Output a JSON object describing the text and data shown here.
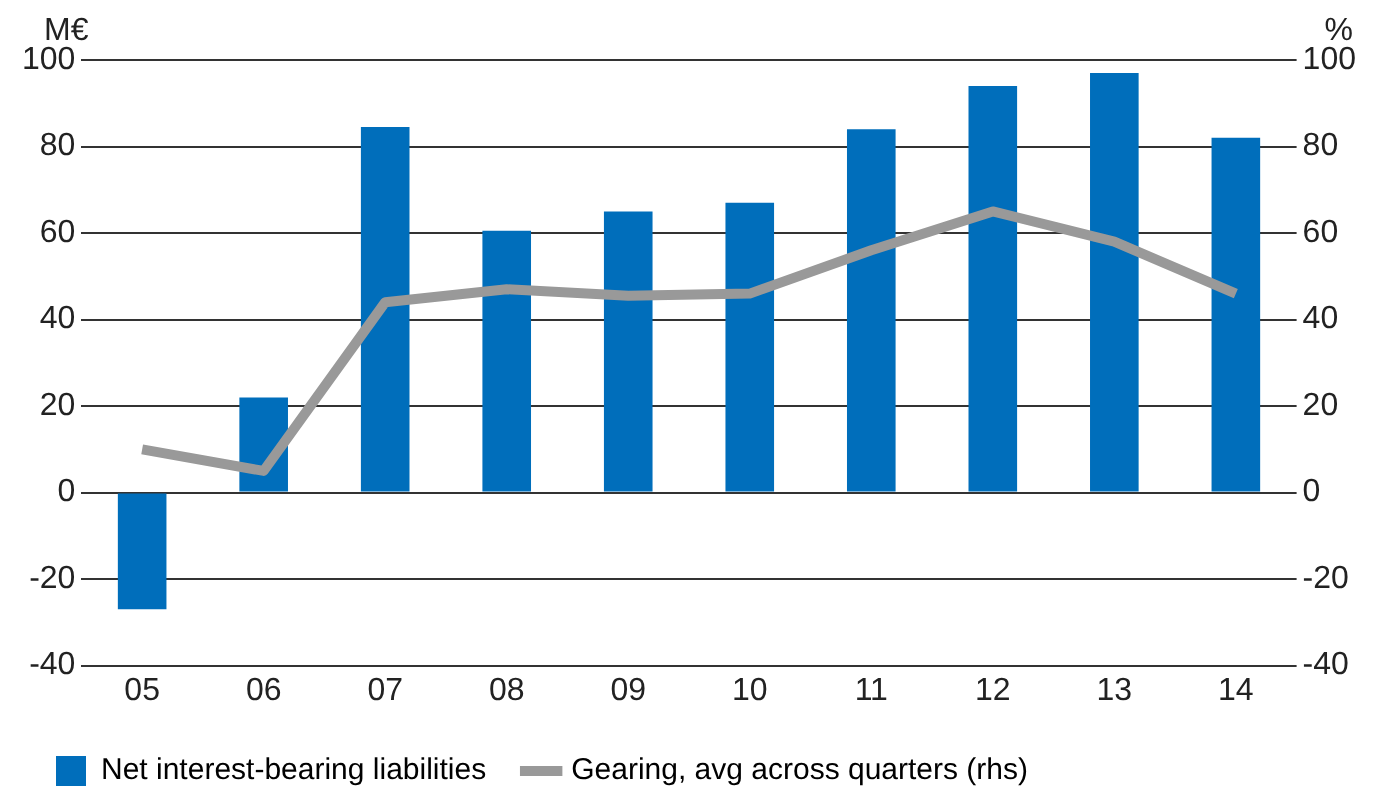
{
  "chart_data": {
    "type": "bar",
    "ylabel": "M€",
    "y2label": "%",
    "categories": [
      "05",
      "06",
      "07",
      "08",
      "09",
      "10",
      "11",
      "12",
      "13",
      "14"
    ],
    "series": [
      {
        "name": "Net interest-bearing liabilities",
        "color": "#006ebb",
        "values": [
          -27,
          22,
          84.5,
          60.5,
          65,
          67,
          84,
          94,
          97,
          82
        ]
      },
      {
        "name": "Gearing, avg across quarters (rhs)",
        "type": "line",
        "axis": "y2",
        "color": "#999999",
        "values": [
          10,
          5,
          44,
          47,
          45.5,
          46,
          56,
          65,
          58,
          46
        ]
      }
    ],
    "ylim": [
      -40,
      100
    ],
    "yticks": [
      -40,
      -20,
      0,
      20,
      40,
      60,
      80,
      100
    ],
    "y2lim": [
      -40,
      100
    ],
    "y2ticks": [
      -40,
      -20,
      0,
      20,
      40,
      60,
      80,
      100
    ],
    "grid": "y",
    "legend": "bottom left",
    "marker": "none",
    "line_style": "solid"
  }
}
